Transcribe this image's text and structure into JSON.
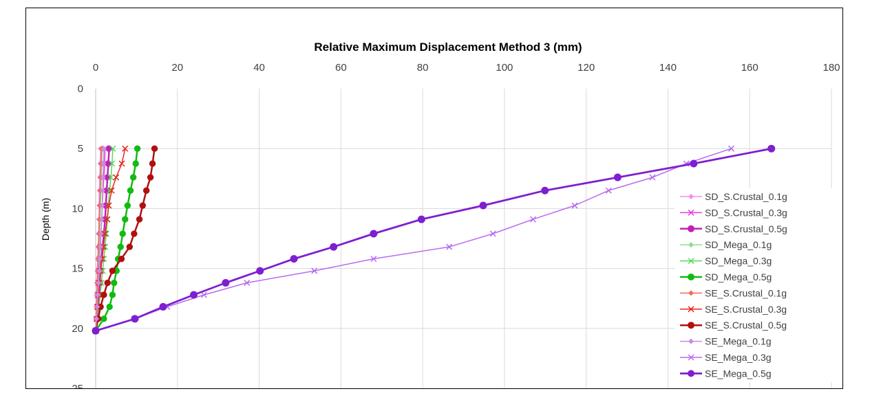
{
  "chart_data": {
    "type": "line",
    "title": "Relative Maximum  Displacement Method 3 (mm)",
    "xlabel": "",
    "ylabel": "Depth (m)",
    "xlim": [
      0,
      180
    ],
    "ylim": [
      0,
      25
    ],
    "y_inverted": true,
    "x_axis_position": "top",
    "x_ticks": [
      0,
      20,
      40,
      60,
      80,
      100,
      120,
      140,
      160,
      180
    ],
    "y_ticks": [
      0,
      5,
      10,
      15,
      20,
      25
    ],
    "grid": true,
    "legend_position": "right",
    "series": [
      {
        "name": "SD_S.Crustal_0.1g",
        "color": "#f58cf0",
        "marker": "diamond",
        "width": 1.5,
        "points": [
          [
            1.2,
            5
          ],
          [
            1.1,
            6.25
          ],
          [
            1.0,
            7.4
          ],
          [
            0.9,
            8.5
          ],
          [
            0.85,
            9.75
          ],
          [
            0.8,
            10.9
          ],
          [
            0.7,
            12.1
          ],
          [
            0.6,
            13.2
          ],
          [
            0.5,
            14.2
          ],
          [
            0.4,
            15.2
          ],
          [
            0.3,
            16.2
          ],
          [
            0.25,
            17.2
          ],
          [
            0.2,
            18.2
          ],
          [
            0.1,
            19.2
          ],
          [
            0,
            20.2
          ]
        ]
      },
      {
        "name": "SD_S.Crustal_0.3g",
        "color": "#e63ae0",
        "marker": "x",
        "width": 1.5,
        "points": [
          [
            2.3,
            5
          ],
          [
            2.2,
            6.25
          ],
          [
            2.0,
            7.4
          ],
          [
            1.8,
            8.5
          ],
          [
            1.6,
            9.75
          ],
          [
            1.5,
            10.9
          ],
          [
            1.3,
            12.1
          ],
          [
            1.1,
            13.2
          ],
          [
            0.95,
            14.2
          ],
          [
            0.8,
            15.2
          ],
          [
            0.6,
            16.2
          ],
          [
            0.45,
            17.2
          ],
          [
            0.35,
            18.2
          ],
          [
            0.2,
            19.2
          ],
          [
            0,
            20.2
          ]
        ]
      },
      {
        "name": "SD_S.Crustal_0.5g",
        "color": "#c020b8",
        "marker": "circle",
        "width": 2.5,
        "points": [
          [
            3.3,
            5
          ],
          [
            3.1,
            6.25
          ],
          [
            2.9,
            7.4
          ],
          [
            2.7,
            8.5
          ],
          [
            2.5,
            9.75
          ],
          [
            2.3,
            10.9
          ],
          [
            2.0,
            12.1
          ],
          [
            1.7,
            13.2
          ],
          [
            1.4,
            14.2
          ],
          [
            1.2,
            15.2
          ],
          [
            1.0,
            16.2
          ],
          [
            0.8,
            17.2
          ],
          [
            0.6,
            18.2
          ],
          [
            0.3,
            19.2
          ],
          [
            0,
            20.2
          ]
        ]
      },
      {
        "name": "SD_Mega_0.1g",
        "color": "#8be08b",
        "marker": "diamond",
        "width": 1.5,
        "points": [
          [
            1.6,
            5
          ],
          [
            1.5,
            6.25
          ],
          [
            1.4,
            7.4
          ],
          [
            1.3,
            8.5
          ],
          [
            1.2,
            9.75
          ],
          [
            1.1,
            10.9
          ],
          [
            1.0,
            12.1
          ],
          [
            0.9,
            13.2
          ],
          [
            0.75,
            14.2
          ],
          [
            0.6,
            15.2
          ],
          [
            0.5,
            16.2
          ],
          [
            0.4,
            17.2
          ],
          [
            0.3,
            18.2
          ],
          [
            0.15,
            19.2
          ],
          [
            0,
            20.2
          ]
        ]
      },
      {
        "name": "SD_Mega_0.3g",
        "color": "#5cd65c",
        "marker": "x",
        "width": 1.5,
        "points": [
          [
            4.2,
            5
          ],
          [
            4.0,
            6.25
          ],
          [
            3.7,
            7.4
          ],
          [
            3.4,
            8.5
          ],
          [
            3.1,
            9.75
          ],
          [
            2.9,
            10.9
          ],
          [
            2.6,
            12.1
          ],
          [
            2.3,
            13.2
          ],
          [
            2.0,
            14.2
          ],
          [
            1.7,
            15.2
          ],
          [
            1.4,
            16.2
          ],
          [
            1.1,
            17.2
          ],
          [
            0.8,
            18.2
          ],
          [
            0.4,
            19.2
          ],
          [
            0,
            20.2
          ]
        ]
      },
      {
        "name": "SD_Mega_0.5g",
        "color": "#11bb11",
        "marker": "circle",
        "width": 2.5,
        "points": [
          [
            10.2,
            5
          ],
          [
            9.8,
            6.25
          ],
          [
            9.2,
            7.4
          ],
          [
            8.5,
            8.5
          ],
          [
            7.8,
            9.75
          ],
          [
            7.2,
            10.9
          ],
          [
            6.6,
            12.1
          ],
          [
            6.1,
            13.2
          ],
          [
            5.5,
            14.2
          ],
          [
            5.1,
            15.2
          ],
          [
            4.5,
            16.2
          ],
          [
            4.1,
            17.2
          ],
          [
            3.4,
            18.2
          ],
          [
            2.0,
            19.2
          ],
          [
            0,
            20.2
          ]
        ]
      },
      {
        "name": "SE_S.Crustal_0.1g",
        "color": "#f06a5a",
        "marker": "diamond",
        "width": 1.5,
        "points": [
          [
            1.4,
            5
          ],
          [
            1.3,
            6.25
          ],
          [
            1.2,
            7.4
          ],
          [
            1.1,
            8.5
          ],
          [
            1.0,
            9.75
          ],
          [
            0.9,
            10.9
          ],
          [
            0.8,
            12.1
          ],
          [
            0.7,
            13.2
          ],
          [
            0.6,
            14.2
          ],
          [
            0.5,
            15.2
          ],
          [
            0.4,
            16.2
          ],
          [
            0.3,
            17.2
          ],
          [
            0.2,
            18.2
          ],
          [
            0.1,
            19.2
          ],
          [
            0,
            20.2
          ]
        ]
      },
      {
        "name": "SE_S.Crustal_0.3g",
        "color": "#e8281e",
        "marker": "x",
        "width": 1.5,
        "points": [
          [
            7.2,
            5
          ],
          [
            6.4,
            6.25
          ],
          [
            5.0,
            7.4
          ],
          [
            3.9,
            8.5
          ],
          [
            3.2,
            9.75
          ],
          [
            2.8,
            10.9
          ],
          [
            2.3,
            12.1
          ],
          [
            1.9,
            13.2
          ],
          [
            1.6,
            14.2
          ],
          [
            1.2,
            15.2
          ],
          [
            0.9,
            16.2
          ],
          [
            0.7,
            17.2
          ],
          [
            0.5,
            18.2
          ],
          [
            0.3,
            19.2
          ],
          [
            0,
            20.2
          ]
        ]
      },
      {
        "name": "SE_S.Crustal_0.5g",
        "color": "#b01010",
        "marker": "circle",
        "width": 2.5,
        "points": [
          [
            14.4,
            5
          ],
          [
            13.9,
            6.25
          ],
          [
            13.4,
            7.4
          ],
          [
            12.4,
            8.5
          ],
          [
            11.5,
            9.75
          ],
          [
            10.7,
            10.9
          ],
          [
            9.4,
            12.1
          ],
          [
            8.3,
            13.2
          ],
          [
            6.3,
            14.2
          ],
          [
            4.1,
            15.2
          ],
          [
            2.9,
            16.2
          ],
          [
            2.0,
            17.2
          ],
          [
            1.2,
            18.2
          ],
          [
            0.6,
            19.2
          ],
          [
            0,
            20.2
          ]
        ]
      },
      {
        "name": "SE_Mega_0.1g",
        "color": "#c98be6",
        "marker": "diamond",
        "width": 1.5,
        "points": [
          [
            2.0,
            5
          ],
          [
            1.9,
            6.25
          ],
          [
            1.8,
            7.4
          ],
          [
            1.7,
            8.5
          ],
          [
            1.6,
            9.75
          ],
          [
            1.5,
            10.9
          ],
          [
            1.3,
            12.1
          ],
          [
            1.2,
            13.2
          ],
          [
            1.0,
            14.2
          ],
          [
            0.9,
            15.2
          ],
          [
            0.7,
            16.2
          ],
          [
            0.5,
            17.2
          ],
          [
            0.4,
            18.2
          ],
          [
            0.2,
            19.2
          ],
          [
            0,
            20.2
          ]
        ]
      },
      {
        "name": "SE_Mega_0.3g",
        "color": "#b66bf0",
        "marker": "x",
        "width": 1.5,
        "points": [
          [
            155.5,
            5
          ],
          [
            144.5,
            6.25
          ],
          [
            136.2,
            7.4
          ],
          [
            125.5,
            8.5
          ],
          [
            117.2,
            9.75
          ],
          [
            107.0,
            10.9
          ],
          [
            97.2,
            12.1
          ],
          [
            86.5,
            13.2
          ],
          [
            68.0,
            14.2
          ],
          [
            53.5,
            15.2
          ],
          [
            37.0,
            16.2
          ],
          [
            26.5,
            17.2
          ],
          [
            17.5,
            18.2
          ],
          [
            9.5,
            19.2
          ],
          [
            0,
            20.2
          ]
        ]
      },
      {
        "name": "SE_Mega_0.5g",
        "color": "#7e1fd0",
        "marker": "circle",
        "width": 2.8,
        "points": [
          [
            165.3,
            5
          ],
          [
            146.3,
            6.25
          ],
          [
            127.7,
            7.4
          ],
          [
            109.9,
            8.5
          ],
          [
            94.8,
            9.75
          ],
          [
            79.7,
            10.9
          ],
          [
            68.0,
            12.1
          ],
          [
            58.2,
            13.2
          ],
          [
            48.5,
            14.2
          ],
          [
            40.2,
            15.2
          ],
          [
            31.8,
            16.2
          ],
          [
            24.0,
            17.2
          ],
          [
            16.5,
            18.2
          ],
          [
            9.6,
            19.2
          ],
          [
            0,
            20.2
          ]
        ]
      }
    ]
  }
}
